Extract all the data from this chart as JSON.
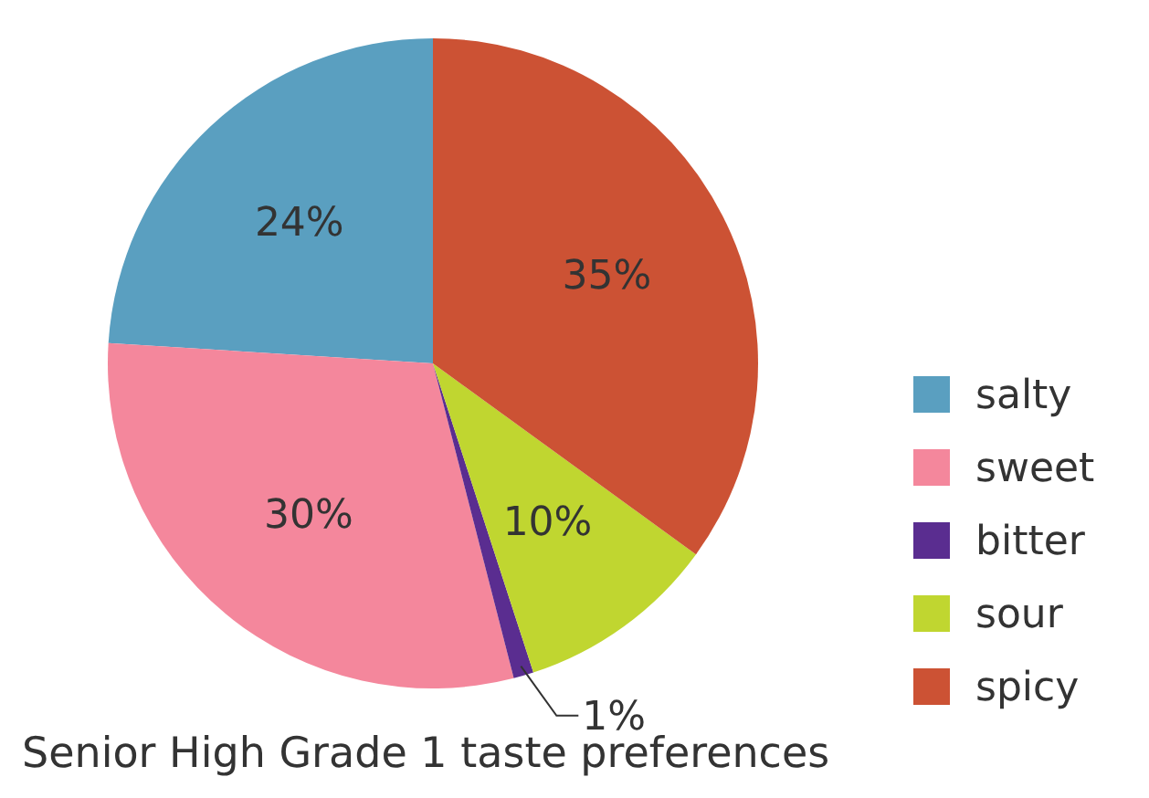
{
  "chart_data": {
    "type": "pie",
    "title": "Senior High Grade 1 taste preferences",
    "categories": [
      "salty",
      "sweet",
      "bitter",
      "sour",
      "spicy"
    ],
    "values": [
      24,
      30,
      1,
      10,
      35
    ],
    "colors": [
      "#5a9fc0",
      "#f4879c",
      "#5a2d90",
      "#c0d630",
      "#cc5234"
    ],
    "value_labels": [
      "24%",
      "30%",
      "1%",
      "10%",
      "35%"
    ],
    "legend": "right"
  }
}
